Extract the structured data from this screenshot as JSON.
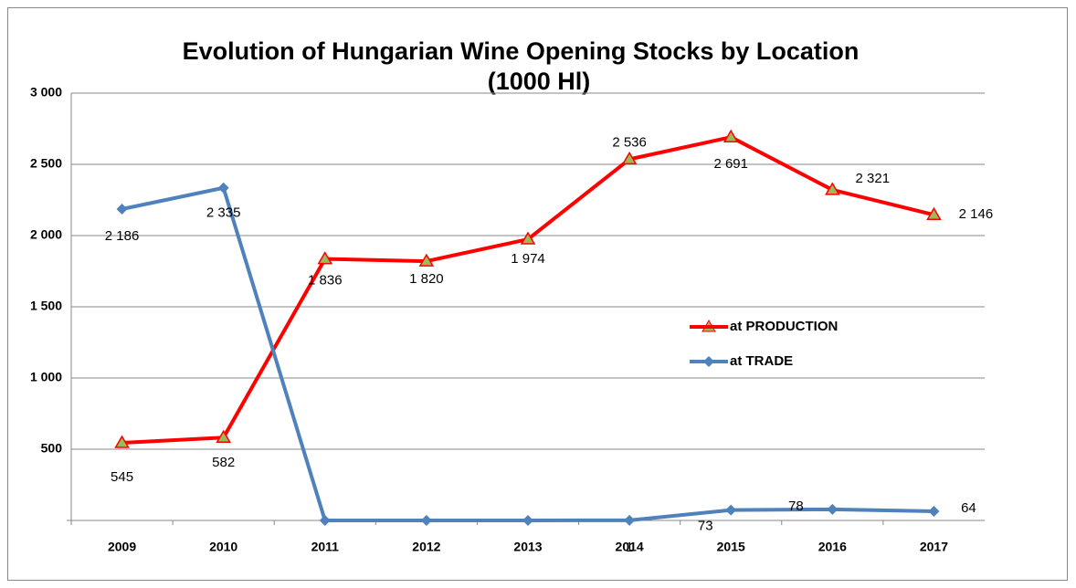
{
  "chart_data": {
    "type": "line",
    "title": "Evolution of Hungarian Wine Opening Stocks by Location",
    "subtitle": "(1000 Hl)",
    "categories": [
      "2009",
      "2010",
      "2011",
      "2012",
      "2013",
      "2014",
      "2015",
      "2016",
      "2017"
    ],
    "series": [
      {
        "name": "at PRODUCTION",
        "color": "#ff0000",
        "marker_color": "#9bbb59",
        "values": [
          545,
          582,
          1836,
          1820,
          1974,
          2536,
          2691,
          2321,
          2146
        ],
        "value_labels": [
          "545",
          "582",
          "1 836",
          "1 820",
          "1 974",
          "2 536",
          "2 691",
          "2 321",
          "2 146"
        ]
      },
      {
        "name": "at TRADE",
        "color": "#4f81bd",
        "marker_color": "#4f81bd",
        "values": [
          2186,
          2335,
          0,
          0,
          0,
          1,
          73,
          78,
          64
        ],
        "value_labels": [
          "2 186",
          "2 335",
          null,
          null,
          null,
          "1",
          "73",
          "78",
          "64"
        ]
      }
    ],
    "ylim": [
      0,
      3000
    ],
    "yticks": [
      500,
      {
        "value": 1000,
        "label": "1 000"
      },
      {
        "value": 1500,
        "label": "1 500"
      },
      {
        "value": 2000,
        "label": "2 000"
      },
      {
        "value": 2500,
        "label": "2 500"
      },
      {
        "value": 3000,
        "label": "3 000"
      }
    ],
    "grid": true,
    "legend": "right"
  }
}
